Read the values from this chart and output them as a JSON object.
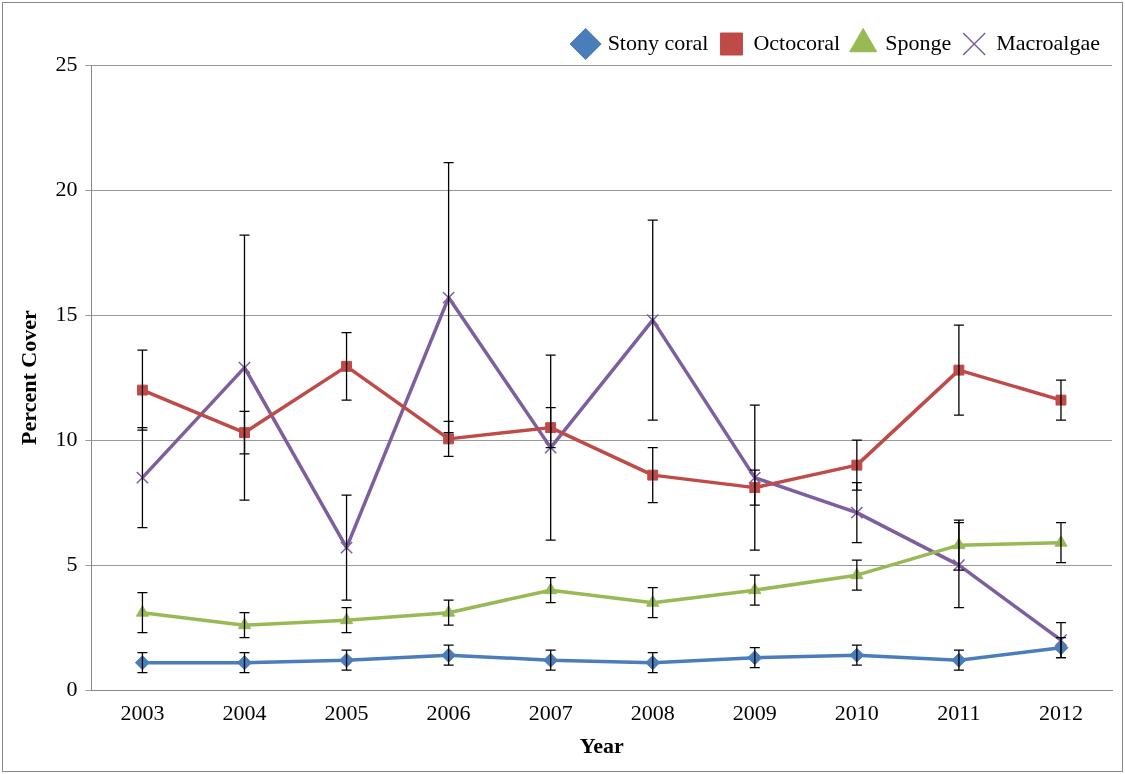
{
  "chart_data": {
    "type": "line",
    "xlabel": "Year",
    "ylabel": "Percent Cover",
    "categories": [
      "2003",
      "2004",
      "2005",
      "2006",
      "2007",
      "2008",
      "2009",
      "2010",
      "2011",
      "2012"
    ],
    "ylim": [
      0,
      25
    ],
    "yticks": [
      0,
      5,
      10,
      15,
      20,
      25
    ],
    "grid": "y",
    "legend": "top right",
    "series": [
      {
        "name": "Stony coral",
        "color": "#4a7ebb",
        "marker": "diamond",
        "values": [
          1.1,
          1.1,
          1.2,
          1.4,
          1.2,
          1.1,
          1.3,
          1.4,
          1.2,
          1.7
        ],
        "errors": [
          0.4,
          0.4,
          0.4,
          0.4,
          0.4,
          0.4,
          0.4,
          0.4,
          0.4,
          0.4
        ]
      },
      {
        "name": "Octocoral",
        "color": "#be4b48",
        "marker": "square",
        "values": [
          12.0,
          10.3,
          12.95,
          10.05,
          10.5,
          8.6,
          8.1,
          9.0,
          12.8,
          11.6
        ],
        "errors": [
          1.6,
          0.85,
          1.35,
          0.7,
          0.8,
          1.1,
          0.7,
          1.0,
          1.8,
          0.8
        ]
      },
      {
        "name": "Sponge",
        "color": "#98b954",
        "marker": "triangle",
        "values": [
          3.1,
          2.6,
          2.8,
          3.1,
          4.0,
          3.5,
          4.0,
          4.6,
          5.8,
          5.9
        ],
        "errors": [
          0.8,
          0.5,
          0.5,
          0.5,
          0.5,
          0.6,
          0.6,
          0.6,
          1.0,
          0.8
        ]
      },
      {
        "name": "Macroalgae",
        "color": "#7d5fa0",
        "marker": "cross",
        "values": [
          8.5,
          12.9,
          5.7,
          15.7,
          9.7,
          14.8,
          8.5,
          7.1,
          5.0,
          2.0
        ],
        "errors": [
          2.0,
          5.3,
          2.1,
          5.4,
          3.7,
          4.0,
          2.9,
          1.2,
          1.7,
          0.7
        ]
      }
    ]
  }
}
